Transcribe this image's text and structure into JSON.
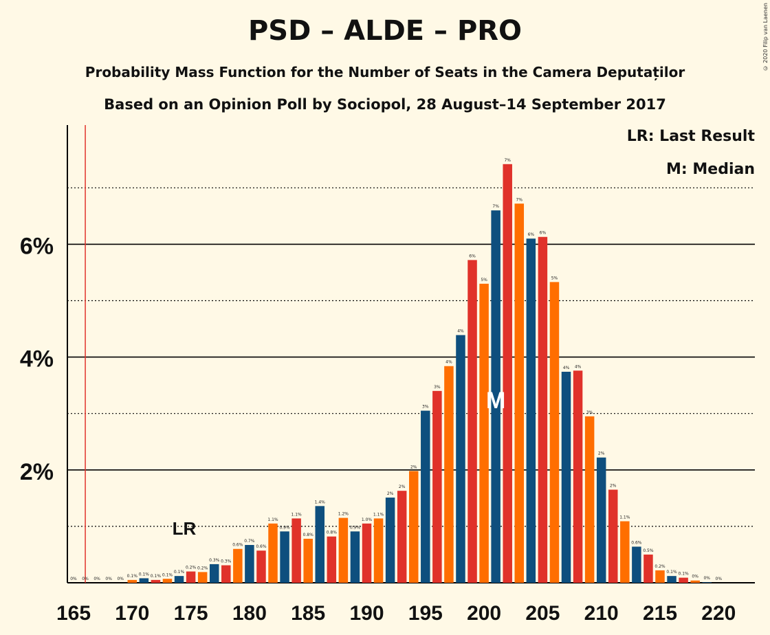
{
  "title": "PSD – ALDE – PRO",
  "subtitle1": "Probability Mass Function for the Number of Seats in the Camera Deputaților",
  "subtitle2": "Based on an Opinion Poll by Sociopol, 28 August–14 September 2017",
  "legend": {
    "last_result": "LR: Last Result",
    "median": "M: Median"
  },
  "copyright": "© 2020 Filip van Laenen",
  "colors": {
    "background": "#FFF9E6",
    "blue": "#0E4F7E",
    "red": "#E0322A",
    "orange": "#FF6E00",
    "last_result_line": "#E0322A"
  },
  "chart_data": {
    "type": "bar",
    "x": [
      165,
      166,
      167,
      168,
      169,
      170,
      171,
      172,
      173,
      174,
      175,
      176,
      177,
      178,
      179,
      180,
      181,
      182,
      183,
      184,
      185,
      186,
      187,
      188,
      189,
      190,
      191,
      192,
      193,
      194,
      195,
      196,
      197,
      198,
      199,
      200,
      201,
      202,
      203,
      204,
      205,
      206,
      207,
      208,
      209,
      210,
      211,
      212,
      213,
      214,
      215,
      216,
      217,
      218,
      219,
      220
    ],
    "values": [
      0,
      0,
      0,
      0,
      0,
      0.05,
      0.08,
      0.05,
      0.07,
      0.12,
      0.2,
      0.19,
      0.33,
      0.31,
      0.6,
      0.67,
      0.57,
      1.05,
      0.91,
      1.14,
      0.78,
      1.36,
      0.82,
      1.15,
      0.91,
      1.05,
      1.14,
      1.51,
      1.63,
      1.98,
      3.05,
      3.4,
      3.84,
      4.39,
      5.72,
      5.3,
      6.6,
      7.42,
      6.72,
      6.1,
      6.13,
      5.33,
      3.74,
      3.76,
      2.95,
      2.22,
      1.65,
      1.09,
      0.64,
      0.5,
      0.22,
      0.12,
      0.09,
      0.04,
      0.01,
      0
    ],
    "labels": [
      "0%",
      "0%",
      "0%",
      "0%",
      "0%",
      "0.1%",
      "0.1%",
      "0.1%",
      "0.1%",
      "0.1%",
      "0.2%",
      "0.2%",
      "0.3%",
      "0.3%",
      "0.6%",
      "0.7%",
      "0.6%",
      "1.1%",
      "0.9%",
      "1.1%",
      "0.8%",
      "1.4%",
      "0.8%",
      "1.2%",
      "0.9%",
      "1.0%",
      "1.1%",
      "2%",
      "2%",
      "2%",
      "3%",
      "3%",
      "4%",
      "4%",
      "6%",
      "5%",
      "7%",
      "7%",
      "7%",
      "6%",
      "6%",
      "5%",
      "4%",
      "4%",
      "3%",
      "2%",
      "2%",
      "1.1%",
      "0.6%",
      "0.5%",
      "0.2%",
      "0.1%",
      "0.1%",
      "0%",
      "0%",
      "0%"
    ],
    "color_cycle": [
      "blue",
      "red",
      "orange"
    ],
    "x_ticks": [
      165,
      170,
      175,
      180,
      185,
      190,
      195,
      200,
      205,
      210,
      215,
      220
    ],
    "y_ticks_major": [
      2,
      4,
      6
    ],
    "y_tick_labels": [
      "2%",
      "4%",
      "6%"
    ],
    "y_ticks_minor": [
      1,
      3,
      5,
      7
    ],
    "ylim": [
      0,
      8
    ],
    "last_result": {
      "seat": 166,
      "label": "LR"
    },
    "median": {
      "seat": 201,
      "label": "M"
    }
  }
}
